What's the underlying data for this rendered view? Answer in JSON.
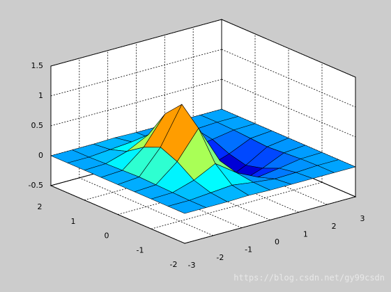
{
  "chart_data": {
    "type": "surface",
    "x": [
      -3,
      -2.25,
      -1.5,
      -0.75,
      0,
      0.75,
      1.5,
      2.25,
      3
    ],
    "y": [
      -2,
      -1.5,
      -1,
      -0.5,
      0,
      0.5,
      1,
      1.5,
      2
    ],
    "z": [
      [
        0,
        0,
        0,
        0.01,
        0,
        0,
        0,
        0,
        0
      ],
      [
        0,
        0,
        0.03,
        0.06,
        0.01,
        -0.03,
        -0.02,
        0,
        0
      ],
      [
        0,
        0.01,
        0.12,
        0.3,
        0.05,
        -0.12,
        -0.07,
        -0.01,
        0
      ],
      [
        0,
        0.02,
        0.31,
        0.77,
        0.13,
        -0.31,
        -0.19,
        -0.03,
        0
      ],
      [
        0,
        0.03,
        0.43,
        1.05,
        0.18,
        -0.42,
        -0.26,
        -0.05,
        0
      ],
      [
        0,
        0.02,
        0.31,
        0.77,
        0.13,
        -0.31,
        -0.19,
        -0.03,
        0
      ],
      [
        0,
        0.01,
        0.12,
        0.3,
        0.05,
        -0.12,
        -0.07,
        -0.01,
        0
      ],
      [
        0,
        0,
        0.03,
        0.06,
        0.01,
        -0.03,
        -0.02,
        0,
        0
      ],
      [
        0,
        0,
        0,
        0.01,
        0,
        0,
        0,
        0,
        0
      ]
    ],
    "colormap": "jet",
    "edge_color": "#000000",
    "xlim": [
      -3,
      3
    ],
    "ylim": [
      -2,
      2
    ],
    "zlim": [
      -0.5,
      1.5
    ],
    "xticks": [
      -3,
      -2,
      -1,
      0,
      1,
      2,
      3
    ],
    "yticks": [
      -2,
      -1,
      0,
      1,
      2
    ],
    "zticks": [
      -0.5,
      0,
      0.5,
      1,
      1.5
    ],
    "grid": true
  },
  "watermark": "https://blog.csdn.net/gy99csdn"
}
